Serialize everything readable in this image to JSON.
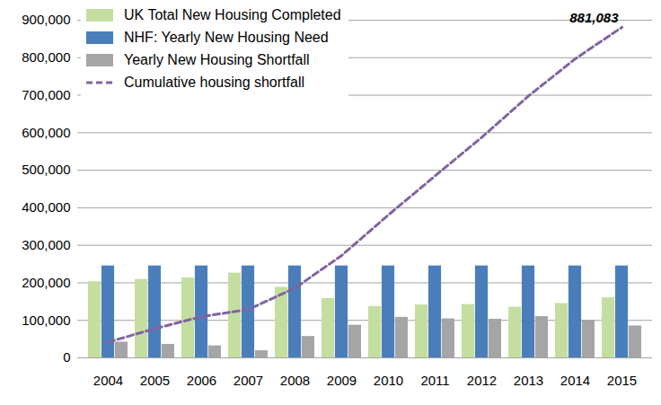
{
  "chart_data": {
    "type": "bar",
    "categories": [
      "2004",
      "2005",
      "2006",
      "2007",
      "2008",
      "2009",
      "2010",
      "2011",
      "2012",
      "2013",
      "2014",
      "2015"
    ],
    "series": [
      {
        "name": "UK Total New Housing Completed",
        "color": "#c4dea0",
        "type": "bar",
        "values": [
          203000,
          209000,
          213000,
          226000,
          188000,
          158000,
          137000,
          141000,
          142000,
          135000,
          145000,
          160000
        ]
      },
      {
        "name": "NHF: Yearly New Housing Need",
        "color": "#4a7ebb",
        "type": "bar",
        "values": [
          245000,
          245000,
          245000,
          245000,
          245000,
          245000,
          245000,
          245000,
          245000,
          245000,
          245000,
          245000
        ]
      },
      {
        "name": "Yearly New Housing Shortfall",
        "color": "#a5a5a5",
        "type": "bar",
        "values": [
          42000,
          36000,
          32000,
          19000,
          57000,
          87000,
          108000,
          104000,
          103000,
          110000,
          100000,
          85000
        ]
      },
      {
        "name": "Cumulative housing shortfall",
        "color": "#8064a2",
        "type": "line",
        "line_style": "dashed",
        "values": [
          42000,
          78000,
          110000,
          129000,
          186000,
          273000,
          381000,
          485000,
          588000,
          698000,
          797000,
          881083
        ]
      }
    ],
    "ylim": [
      0,
      900000
    ],
    "yticks": [
      0,
      {
        "value": 100000,
        "label": "100,000"
      },
      {
        "value": 200000,
        "label": "200,000"
      },
      {
        "value": 300000,
        "label": "300,000"
      },
      {
        "value": 400000,
        "label": "400,000"
      },
      {
        "value": 500000,
        "label": "500,000"
      },
      {
        "value": 600000,
        "label": "600,000"
      },
      {
        "value": 700000,
        "label": "700,000"
      },
      {
        "value": 800000,
        "label": "800,000"
      },
      {
        "value": 900000,
        "label": "900,000"
      }
    ],
    "grid": true,
    "legend": "top-left",
    "annotations": [
      {
        "text": "881,083",
        "category": "2015",
        "value": 881083
      }
    ]
  }
}
